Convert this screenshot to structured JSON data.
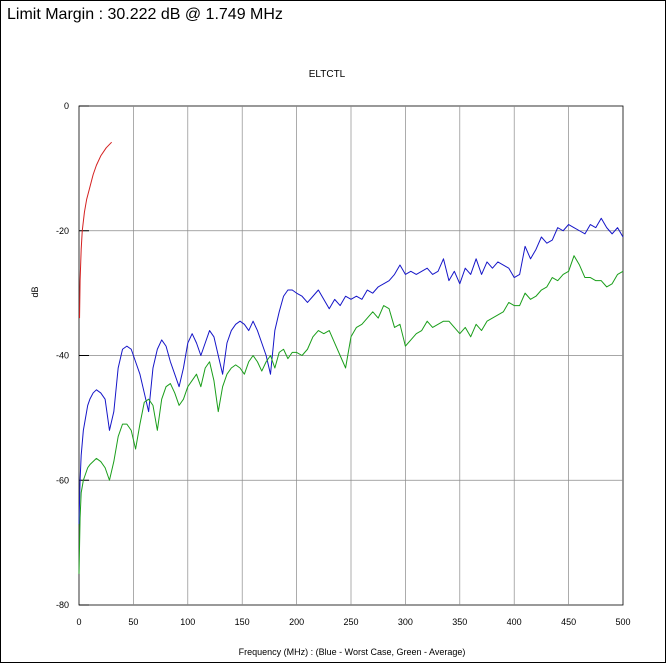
{
  "header": {
    "limit_margin_text": "Limit Margin : 30.222 dB @ 1.749 MHz"
  },
  "chart_data": {
    "type": "line",
    "title": "ELTCTL",
    "xlabel": "Frequency (MHz) : (Blue - Worst Case, Green - Average)",
    "ylabel": "dB",
    "xlim": [
      0,
      500
    ],
    "ylim": [
      -80,
      0
    ],
    "x_ticks": [
      0,
      50,
      100,
      150,
      200,
      250,
      300,
      350,
      400,
      450,
      500
    ],
    "y_ticks": [
      0,
      -20,
      -40,
      -60,
      -80
    ],
    "grid": true,
    "series": [
      {
        "color": "#d42020",
        "x": [
          0.5,
          1,
          2,
          3,
          5,
          7,
          10,
          13,
          16,
          20,
          25,
          30
        ],
        "y": [
          -34,
          -28,
          -23,
          -20,
          -17,
          -15,
          -13,
          -11,
          -9.5,
          -8,
          -6.7,
          -5.8
        ]
      },
      {
        "color": "#1616c8",
        "x": [
          0,
          1,
          2,
          4,
          6,
          8,
          10,
          13,
          16,
          20,
          24,
          28,
          32,
          36,
          40,
          44,
          48,
          52,
          56,
          60,
          64,
          68,
          72,
          76,
          80,
          84,
          88,
          92,
          96,
          100,
          104,
          108,
          112,
          116,
          120,
          124,
          128,
          132,
          136,
          140,
          144,
          148,
          152,
          156,
          160,
          164,
          168,
          172,
          176,
          180,
          184,
          188,
          192,
          196,
          200,
          205,
          210,
          215,
          220,
          225,
          230,
          235,
          240,
          245,
          250,
          255,
          260,
          265,
          270,
          275,
          280,
          285,
          290,
          295,
          300,
          305,
          310,
          315,
          320,
          325,
          330,
          335,
          340,
          345,
          350,
          355,
          360,
          365,
          370,
          375,
          380,
          385,
          390,
          395,
          400,
          405,
          410,
          415,
          420,
          425,
          430,
          435,
          440,
          445,
          450,
          455,
          460,
          465,
          470,
          475,
          480,
          485,
          490,
          495,
          500
        ],
        "y": [
          -67,
          -60,
          -56,
          -52,
          -50,
          -48,
          -47,
          -46,
          -45.5,
          -46,
          -47,
          -52,
          -49,
          -42,
          -39,
          -38.5,
          -39,
          -41,
          -43,
          -46,
          -49,
          -42,
          -39,
          -37.5,
          -38.5,
          -41,
          -43,
          -45,
          -42,
          -38,
          -36.5,
          -38,
          -40,
          -38,
          -36,
          -37,
          -40,
          -43,
          -38,
          -36,
          -35,
          -34.5,
          -35,
          -36,
          -34.5,
          -36,
          -38,
          -40,
          -43,
          -36,
          -33,
          -30.5,
          -29.5,
          -29.5,
          -30,
          -30.5,
          -31.5,
          -30.5,
          -29.5,
          -31,
          -32.5,
          -31,
          -32,
          -30.5,
          -31,
          -30.5,
          -31,
          -29.5,
          -30,
          -29,
          -28.5,
          -28,
          -27,
          -25.5,
          -27,
          -26.5,
          -27,
          -26.5,
          -26,
          -27,
          -26.5,
          -24.5,
          -28,
          -26.5,
          -28.5,
          -26,
          -27,
          -24.5,
          -27,
          -25,
          -26,
          -25,
          -25.5,
          -26,
          -27.5,
          -27,
          -22.5,
          -24.5,
          -23,
          -21,
          -22,
          -21.5,
          -19.5,
          -20,
          -19,
          -19.5,
          -20,
          -20.5,
          -19,
          -19.5,
          -18,
          -19.5,
          -20.5,
          -19.5,
          -21
        ]
      },
      {
        "color": "#1a9e1a",
        "x": [
          0,
          1,
          2,
          4,
          6,
          8,
          10,
          13,
          16,
          20,
          24,
          28,
          32,
          36,
          40,
          44,
          48,
          52,
          56,
          60,
          64,
          68,
          72,
          76,
          80,
          84,
          88,
          92,
          96,
          100,
          104,
          108,
          112,
          116,
          120,
          124,
          128,
          132,
          136,
          140,
          144,
          148,
          152,
          156,
          160,
          164,
          168,
          172,
          176,
          180,
          184,
          188,
          192,
          196,
          200,
          205,
          210,
          215,
          220,
          225,
          230,
          235,
          240,
          245,
          250,
          255,
          260,
          265,
          270,
          275,
          280,
          285,
          290,
          295,
          300,
          305,
          310,
          315,
          320,
          325,
          330,
          335,
          340,
          345,
          350,
          355,
          360,
          365,
          370,
          375,
          380,
          385,
          390,
          395,
          400,
          405,
          410,
          415,
          420,
          425,
          430,
          435,
          440,
          445,
          450,
          455,
          460,
          465,
          470,
          475,
          480,
          485,
          490,
          495,
          500
        ],
        "y": [
          -75,
          -66,
          -62,
          -60,
          -59,
          -58,
          -57.5,
          -57,
          -56.5,
          -57,
          -58,
          -60,
          -57,
          -53,
          -51,
          -51,
          -52,
          -55,
          -51,
          -47.5,
          -47,
          -48,
          -52,
          -47,
          -45,
          -44.5,
          -46,
          -48,
          -47,
          -45,
          -44,
          -43,
          -45,
          -42,
          -41,
          -44,
          -49,
          -45,
          -43,
          -42,
          -41.5,
          -42,
          -43,
          -41,
          -40,
          -41,
          -42.5,
          -41,
          -40,
          -42,
          -39.5,
          -39,
          -40.5,
          -39.5,
          -39.5,
          -40,
          -39,
          -37,
          -36,
          -36.5,
          -36,
          -38,
          -40,
          -42,
          -37,
          -35.5,
          -35,
          -34,
          -33,
          -34,
          -32,
          -32.5,
          -35.5,
          -35,
          -38.5,
          -37.5,
          -36.5,
          -36,
          -34.5,
          -35.5,
          -35,
          -34.5,
          -34.5,
          -35.5,
          -36.5,
          -35.5,
          -37,
          -35,
          -36,
          -34.5,
          -34,
          -33.5,
          -33,
          -31.5,
          -32,
          -32,
          -30,
          -31,
          -30.5,
          -29.5,
          -29,
          -27.5,
          -28,
          -27,
          -26.5,
          -24,
          -25.5,
          -27.5,
          -27.5,
          -28,
          -28,
          -29,
          -28.5,
          -27,
          -26.5
        ]
      }
    ]
  }
}
